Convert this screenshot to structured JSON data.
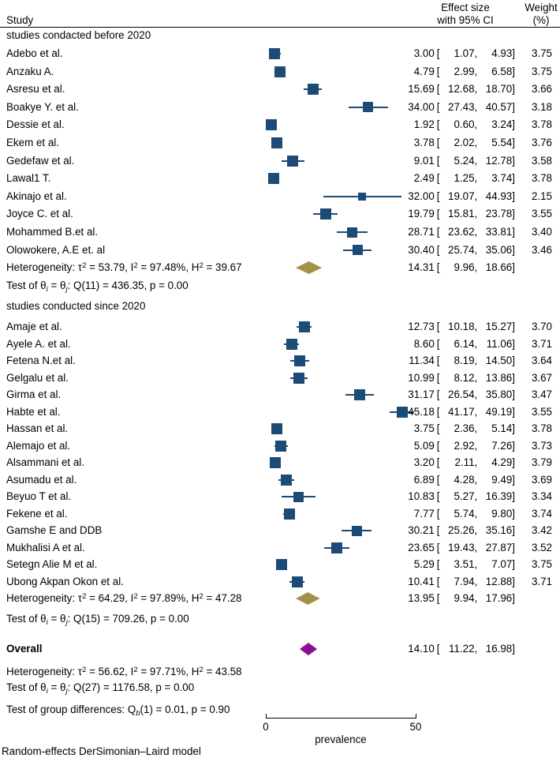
{
  "header": {
    "study": "Study",
    "effect_line1": "Effect size",
    "effect_line2": "with 95% CI",
    "weight_line1": "Weight",
    "weight_line2": "(%)"
  },
  "fmt": {
    "open": "[",
    "comma": ",",
    "close": "]"
  },
  "footer_note": "Random-effects DerSimonian–Laird model",
  "colors": {
    "marker": "#1d4b77",
    "ci_line": "#1d4b77",
    "subgroup_diamond": "#a3914a",
    "overall_diamond": "#8e0d96"
  },
  "chart_data": {
    "type": "forest",
    "xlabel": "prevalence",
    "xlim": [
      0,
      50
    ],
    "x_tick_labels": [
      "0",
      "50"
    ],
    "groups": [
      {
        "label": "studies condacted before 2020",
        "studies": [
          {
            "label": "Adebo et al.",
            "est": "3.00",
            "lo": "1.07",
            "hi": "4.93",
            "weight": "3.75"
          },
          {
            "label": "Anzaku A.",
            "est": "4.79",
            "lo": "2.99",
            "hi": "6.58",
            "weight": "3.75"
          },
          {
            "label": "Asresu et al.",
            "est": "15.69",
            "lo": "12.68",
            "hi": "18.70",
            "weight": "3.66"
          },
          {
            "label": "Boakye Y. et al.",
            "est": "34.00",
            "lo": "27.43",
            "hi": "40.57",
            "weight": "3.18"
          },
          {
            "label": "Dessie et al.",
            "est": "1.92",
            "lo": "0.60",
            "hi": "3.24",
            "weight": "3.78"
          },
          {
            "label": "Ekem et al.",
            "est": "3.78",
            "lo": "2.02",
            "hi": "5.54",
            "weight": "3.76"
          },
          {
            "label": "Gedefaw et al.",
            "est": "9.01",
            "lo": "5.24",
            "hi": "12.78",
            "weight": "3.58"
          },
          {
            "label": "Lawal1 T.",
            "est": "2.49",
            "lo": "1.25",
            "hi": "3.74",
            "weight": "3.78"
          },
          {
            "label": "Akinajo et al.",
            "est": "32.00",
            "lo": "19.07",
            "hi": "44.93",
            "weight": "2.15"
          },
          {
            "label": "Joyce C. et al.",
            "est": "19.79",
            "lo": "15.81",
            "hi": "23.78",
            "weight": "3.55"
          },
          {
            "label": "Mohammed B.et al.",
            "est": "28.71",
            "lo": "23.62",
            "hi": "33.81",
            "weight": "3.40"
          },
          {
            "label": "Olowokere, A.E et. al",
            "est": "30.40",
            "lo": "25.74",
            "hi": "35.06",
            "weight": "3.46"
          }
        ],
        "summary": {
          "est": "14.31",
          "lo": "9.96",
          "hi": "18.66"
        },
        "heterogeneity": [
          {
            "t": "Heterogeneity: τ"
          },
          {
            "sup": "2"
          },
          {
            "t": " = 53.79, I"
          },
          {
            "sup": "2"
          },
          {
            "t": " = 97.48%, H"
          },
          {
            "sup": "2"
          },
          {
            "t": " = 39.67"
          }
        ],
        "test": [
          {
            "t": "Test of θ"
          },
          {
            "sub": "i"
          },
          {
            "t": " = θ"
          },
          {
            "sub": "j"
          },
          {
            "t": ": Q(11) = 436.35, p = 0.00"
          }
        ]
      },
      {
        "label": "studies conducted since 2020",
        "studies": [
          {
            "label": "Amaje et al.",
            "est": "12.73",
            "lo": "10.18",
            "hi": "15.27",
            "weight": "3.70"
          },
          {
            "label": "Ayele A. et al.",
            "est": "8.60",
            "lo": "6.14",
            "hi": "11.06",
            "weight": "3.71"
          },
          {
            "label": "Fetena N.et al.",
            "est": "11.34",
            "lo": "8.19",
            "hi": "14.50",
            "weight": "3.64"
          },
          {
            "label": "Gelgalu et al.",
            "est": "10.99",
            "lo": "8.12",
            "hi": "13.86",
            "weight": "3.67"
          },
          {
            "label": "Girma et al.",
            "est": "31.17",
            "lo": "26.54",
            "hi": "35.80",
            "weight": "3.47"
          },
          {
            "label": "Habte et al.",
            "est": "45.18",
            "lo": "41.17",
            "hi": "49.19",
            "weight": "3.55"
          },
          {
            "label": "Hassan et al.",
            "est": "3.75",
            "lo": "2.36",
            "hi": "5.14",
            "weight": "3.78"
          },
          {
            "label": "Alemajo et al.",
            "est": "5.09",
            "lo": "2.92",
            "hi": "7.26",
            "weight": "3.73"
          },
          {
            "label": "Alsammani et al.",
            "est": "3.20",
            "lo": "2.11",
            "hi": "4.29",
            "weight": "3.79"
          },
          {
            "label": "Asumadu et al.",
            "est": "6.89",
            "lo": "4.28",
            "hi": "9.49",
            "weight": "3.69"
          },
          {
            "label": "Beyuo T et al.",
            "est": "10.83",
            "lo": "5.27",
            "hi": "16.39",
            "weight": "3.34"
          },
          {
            "label": "Fekene et al.",
            "est": "7.77",
            "lo": "5.74",
            "hi": "9.80",
            "weight": "3.74"
          },
          {
            "label": "Gamshe E and DDB",
            "est": "30.21",
            "lo": "25.26",
            "hi": "35.16",
            "weight": "3.42"
          },
          {
            "label": "Mukhalisi A et al.",
            "est": "23.65",
            "lo": "19.43",
            "hi": "27.87",
            "weight": "3.52"
          },
          {
            "label": "Setegn Alie M et al.",
            "est": "5.29",
            "lo": "3.51",
            "hi": "7.07",
            "weight": "3.75"
          },
          {
            "label": "Ubong Akpan Okon et al.",
            "est": "10.41",
            "lo": "7.94",
            "hi": "12.88",
            "weight": "3.71"
          }
        ],
        "summary": {
          "est": "13.95",
          "lo": "9.94",
          "hi": "17.96"
        },
        "heterogeneity": [
          {
            "t": "Heterogeneity: τ"
          },
          {
            "sup": "2"
          },
          {
            "t": " = 64.29, I"
          },
          {
            "sup": "2"
          },
          {
            "t": " = 97.89%, H"
          },
          {
            "sup": "2"
          },
          {
            "t": " = 47.28"
          }
        ],
        "test": [
          {
            "t": "Test of θ"
          },
          {
            "sub": "i"
          },
          {
            "t": " = θ"
          },
          {
            "sub": "j"
          },
          {
            "t": ": Q(15) = 709.26, p = 0.00"
          }
        ]
      }
    ],
    "overall": {
      "label": "Overall",
      "summary": {
        "est": "14.10",
        "lo": "11.22",
        "hi": "16.98"
      },
      "heterogeneity": [
        {
          "t": "Heterogeneity: τ"
        },
        {
          "sup": "2"
        },
        {
          "t": " = 56.62, I"
        },
        {
          "sup": "2"
        },
        {
          "t": " = 97.71%, H"
        },
        {
          "sup": "2"
        },
        {
          "t": " = 43.58"
        }
      ],
      "test": [
        {
          "t": "Test of θ"
        },
        {
          "sub": "i"
        },
        {
          "t": " = θ"
        },
        {
          "sub": "j"
        },
        {
          "t": ": Q(27) = 1176.58, p = 0.00"
        }
      ]
    },
    "group_difference_test": [
      {
        "t": "Test of group differences: Q"
      },
      {
        "sub": "b"
      },
      {
        "t": "(1) = 0.01, p = 0.90"
      }
    ]
  }
}
